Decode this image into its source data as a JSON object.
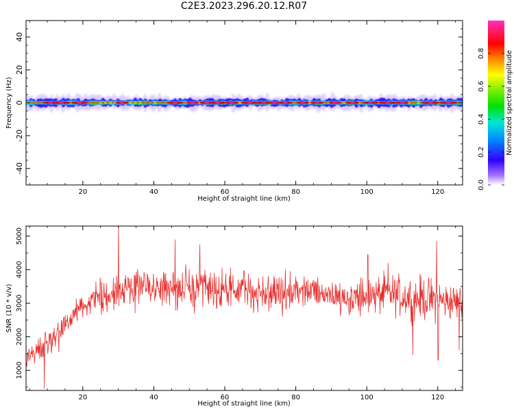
{
  "title": "C2E3.2023.296.20.12.R07",
  "chart_data": [
    {
      "type": "heatmap",
      "xlabel": "Height of straight line (km)",
      "ylabel": "Frequency (Hz)",
      "xlim": [
        4,
        127
      ],
      "ylim": [
        -50,
        50
      ],
      "xticks": [
        20,
        40,
        60,
        80,
        100,
        120
      ],
      "yticks": [
        -40,
        -20,
        0,
        20,
        40
      ],
      "colorbar": {
        "label": "Normalized spectral amplitude",
        "range": [
          0,
          1
        ],
        "ticks": [
          "0.0",
          "0.2",
          "0.4",
          "0.6",
          "0.8"
        ],
        "colormap": "gist_ncar-like (white-purple-blue-cyan-green-yellow-red-magenta)"
      },
      "ridge": {
        "center_frequency": 0,
        "spread_hz": 3,
        "peak_positions_km": [
          11,
          14,
          19,
          31,
          46,
          51,
          55,
          58,
          62,
          67,
          71,
          74,
          77,
          82,
          86,
          91,
          96,
          101,
          106,
          110,
          118,
          123
        ]
      },
      "grid": false
    },
    {
      "type": "line",
      "xlabel": "Height of straight line (km)",
      "ylabel": "SNR (10 * v/v)",
      "xlim": [
        4,
        127
      ],
      "ylim": [
        400,
        5300
      ],
      "xticks": [
        20,
        40,
        60,
        80,
        100,
        120
      ],
      "yticks": [
        1000,
        2000,
        3000,
        4000,
        5000
      ],
      "color": "#e8302e",
      "grid": false,
      "series": [
        {
          "x": [
            4,
            6,
            8,
            10,
            12,
            14,
            16,
            18,
            20,
            22,
            24,
            26,
            28,
            30,
            32,
            34,
            36,
            38,
            40,
            42,
            44,
            46,
            48,
            50,
            52,
            54,
            56,
            58,
            60,
            62,
            64,
            66,
            68,
            70,
            72,
            74,
            76,
            78,
            80,
            82,
            84,
            86,
            88,
            90,
            92,
            94,
            96,
            98,
            100,
            102,
            104,
            106,
            108,
            110,
            112,
            114,
            116,
            118,
            120,
            122,
            124,
            126,
            127
          ],
          "y": [
            1400,
            1550,
            1600,
            1750,
            1900,
            2200,
            2500,
            2700,
            2850,
            3000,
            3100,
            3200,
            3250,
            3350,
            3400,
            3450,
            3500,
            3500,
            3500,
            3450,
            3450,
            3450,
            3450,
            3400,
            3400,
            3400,
            3400,
            3400,
            3350,
            3350,
            3400,
            3400,
            3350,
            3300,
            3300,
            3300,
            3300,
            3300,
            3300,
            3350,
            3350,
            3350,
            3300,
            3250,
            3200,
            3200,
            3150,
            3150,
            3150,
            3200,
            3250,
            3300,
            3250,
            3200,
            3200,
            3150,
            3150,
            3100,
            3100,
            3050,
            3050,
            3000,
            2950
          ],
          "noise_amplitude": [
            300,
            350,
            400,
            500,
            500,
            450,
            400,
            400,
            400,
            450,
            500,
            550,
            600,
            650,
            650,
            650,
            650,
            650,
            650,
            650,
            650,
            650,
            650,
            650,
            650,
            650,
            650,
            650,
            650,
            650,
            650,
            650,
            650,
            650,
            650,
            600,
            600,
            600,
            600,
            600,
            600,
            600,
            550,
            550,
            550,
            550,
            600,
            600,
            650,
            650,
            650,
            650,
            650,
            650,
            650,
            700,
            700,
            700,
            700,
            600,
            600,
            600,
            600
          ],
          "spikes": [
            [
              9.2,
              450
            ],
            [
              30.0,
              5300
            ],
            [
              46.0,
              4900
            ],
            [
              53.0,
              4750
            ],
            [
              100.3,
              4450
            ],
            [
              106.0,
              4200
            ],
            [
              119.7,
              4850
            ],
            [
              113.0,
              1450
            ],
            [
              120.1,
              1300
            ],
            [
              126.0,
              1600
            ]
          ]
        }
      ]
    }
  ]
}
